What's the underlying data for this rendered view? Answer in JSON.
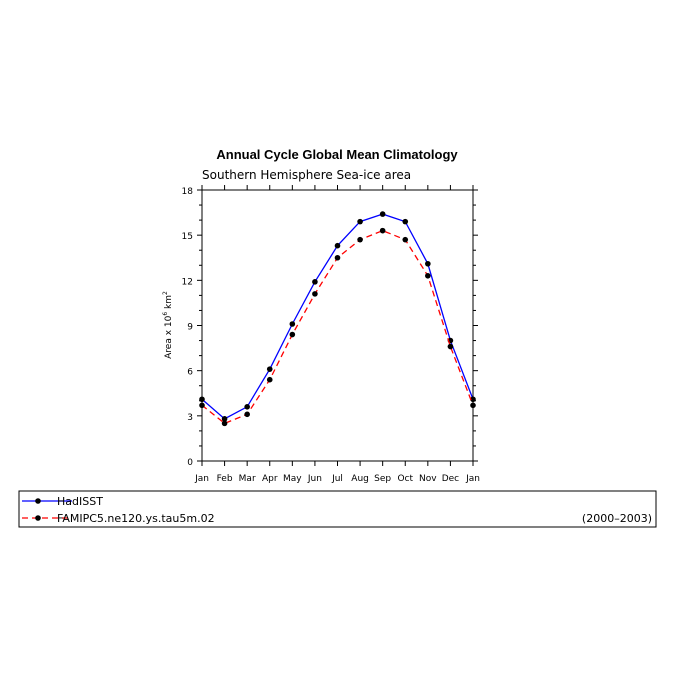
{
  "chart_data": {
    "type": "line",
    "title": "Annual Cycle Global Mean Climatology",
    "subtitle": "Southern Hemisphere Sea-ice area",
    "ylabel_prefix": "Area x 10",
    "ylabel_exponent": "6",
    "ylabel_unit": "km",
    "ylabel_unit_exponent": "2",
    "categories": [
      "Jan",
      "Feb",
      "Mar",
      "Apr",
      "May",
      "Jun",
      "Jul",
      "Aug",
      "Sep",
      "Oct",
      "Nov",
      "Dec",
      "Jan"
    ],
    "yticks": [
      0,
      3,
      6,
      9,
      12,
      15,
      18
    ],
    "ylim": [
      0,
      18
    ],
    "series": [
      {
        "name": "HadISST",
        "color": "#0000ff",
        "dash": "solid",
        "values": [
          4.1,
          2.8,
          3.6,
          6.1,
          9.1,
          11.9,
          14.3,
          15.9,
          16.4,
          15.9,
          13.1,
          8.0,
          4.1
        ]
      },
      {
        "name": "FAMIPC5.ne120.ys.tau5m.02",
        "color": "#ff0000",
        "dash": "dashed",
        "values": [
          3.7,
          2.5,
          3.1,
          5.4,
          8.4,
          11.1,
          13.5,
          14.7,
          15.3,
          14.7,
          12.3,
          7.6,
          3.7
        ]
      }
    ],
    "period": "(2000–2003)"
  }
}
